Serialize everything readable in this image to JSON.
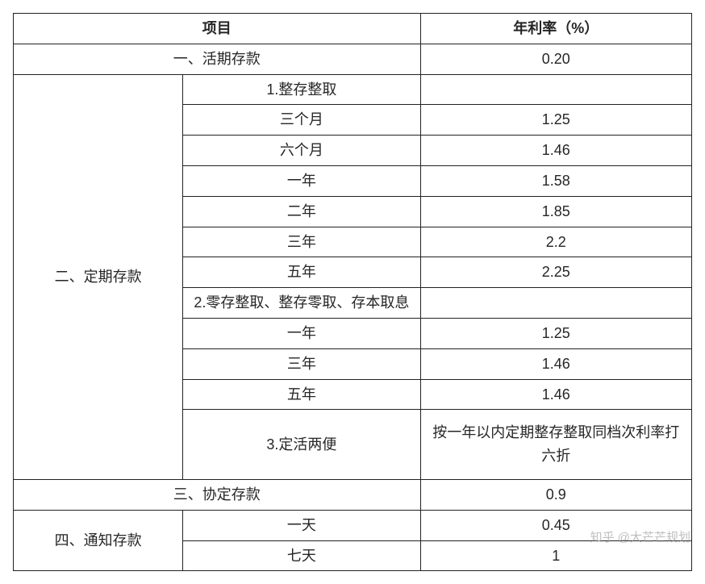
{
  "header": {
    "col1": "项目",
    "col2": "年利率（%）"
  },
  "section1": {
    "title": "一、活期存款",
    "rate": "0.20"
  },
  "section2": {
    "title": "二、定期存款",
    "group1": {
      "title": "1.整存整取",
      "rows": [
        {
          "term": "三个月",
          "rate": "1.25"
        },
        {
          "term": "六个月",
          "rate": "1.46"
        },
        {
          "term": "一年",
          "rate": "1.58"
        },
        {
          "term": "二年",
          "rate": "1.85"
        },
        {
          "term": "三年",
          "rate": "2.2"
        },
        {
          "term": "五年",
          "rate": "2.25"
        }
      ]
    },
    "group2": {
      "title": "2.零存整取、整存零取、存本取息",
      "rows": [
        {
          "term": "一年",
          "rate": "1.25"
        },
        {
          "term": "三年",
          "rate": "1.46"
        },
        {
          "term": "五年",
          "rate": "1.46"
        }
      ]
    },
    "group3": {
      "title": "3.定活两便",
      "note": "按一年以内定期整存整取同档次利率打六折"
    }
  },
  "section3": {
    "title": "三、协定存款",
    "rate": "0.9"
  },
  "section4": {
    "title": "四、通知存款",
    "rows": [
      {
        "term": "一天",
        "rate": "0.45"
      },
      {
        "term": "七天",
        "rate": "1"
      }
    ]
  },
  "watermark": "知乎 @大芒芒规划"
}
